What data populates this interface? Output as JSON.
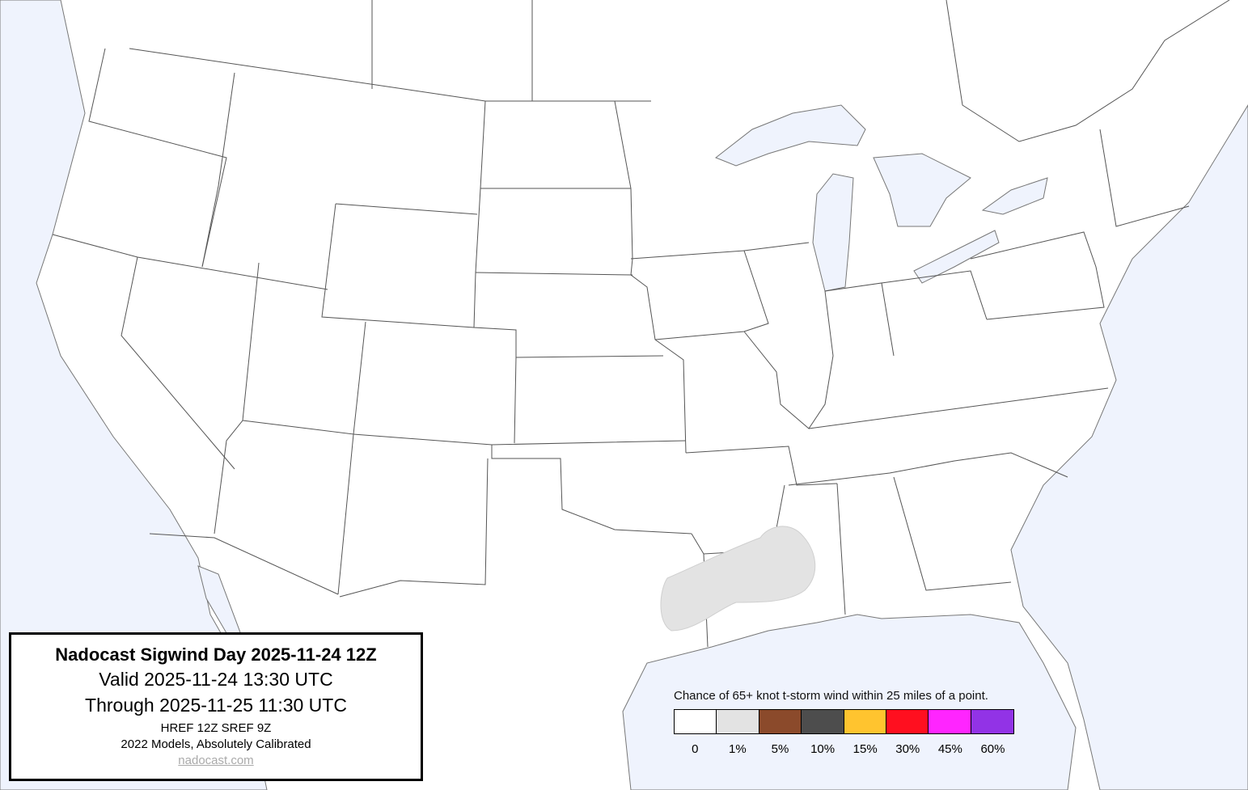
{
  "title_box": {
    "title": "Nadocast Sigwind Day 2025-11-24 12Z",
    "valid": "Valid 2025-11-24 13:30 UTC",
    "through": "Through 2025-11-25 11:30 UTC",
    "models": "HREF 12Z SREF 9Z",
    "calibration": "2022 Models, Absolutely Calibrated",
    "link": "nadocast.com"
  },
  "legend": {
    "title": "Chance of 65+ knot t-storm wind within 25 miles of a point.",
    "bins": [
      {
        "label": "0",
        "color": "#ffffff"
      },
      {
        "label": "1%",
        "color": "#e3e3e3"
      },
      {
        "label": "5%",
        "color": "#8b4a2b"
      },
      {
        "label": "10%",
        "color": "#4d4d4d"
      },
      {
        "label": "15%",
        "color": "#ffc42f"
      },
      {
        "label": "30%",
        "color": "#ff0f1f"
      },
      {
        "label": "45%",
        "color": "#ff25ff"
      },
      {
        "label": "60%",
        "color": "#9233e6"
      }
    ]
  },
  "map": {
    "water_color": "#eff3fd",
    "land_color": "#ffffff",
    "risk_areas": [
      {
        "category": "1%",
        "region": "Louisiana / Mississippi / east Texas"
      }
    ]
  }
}
